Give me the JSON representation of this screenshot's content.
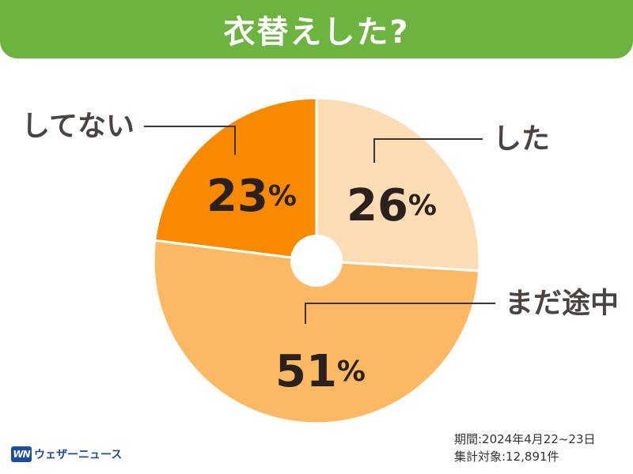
{
  "header": {
    "title": "衣替えした?"
  },
  "chart_data": {
    "type": "pie",
    "title": "衣替えした?",
    "categories": [
      "した",
      "まだ途中",
      "してない"
    ],
    "values": [
      26,
      51,
      23
    ],
    "unit": "%",
    "colors": [
      "#fcdcb4",
      "#fdb864",
      "#f98a00"
    ]
  },
  "footer": {
    "period": "期間:2024年4月22~23日",
    "count": "集計対象:12,891件"
  },
  "logo": {
    "mark": "WN",
    "text": "ウェザーニュース"
  }
}
